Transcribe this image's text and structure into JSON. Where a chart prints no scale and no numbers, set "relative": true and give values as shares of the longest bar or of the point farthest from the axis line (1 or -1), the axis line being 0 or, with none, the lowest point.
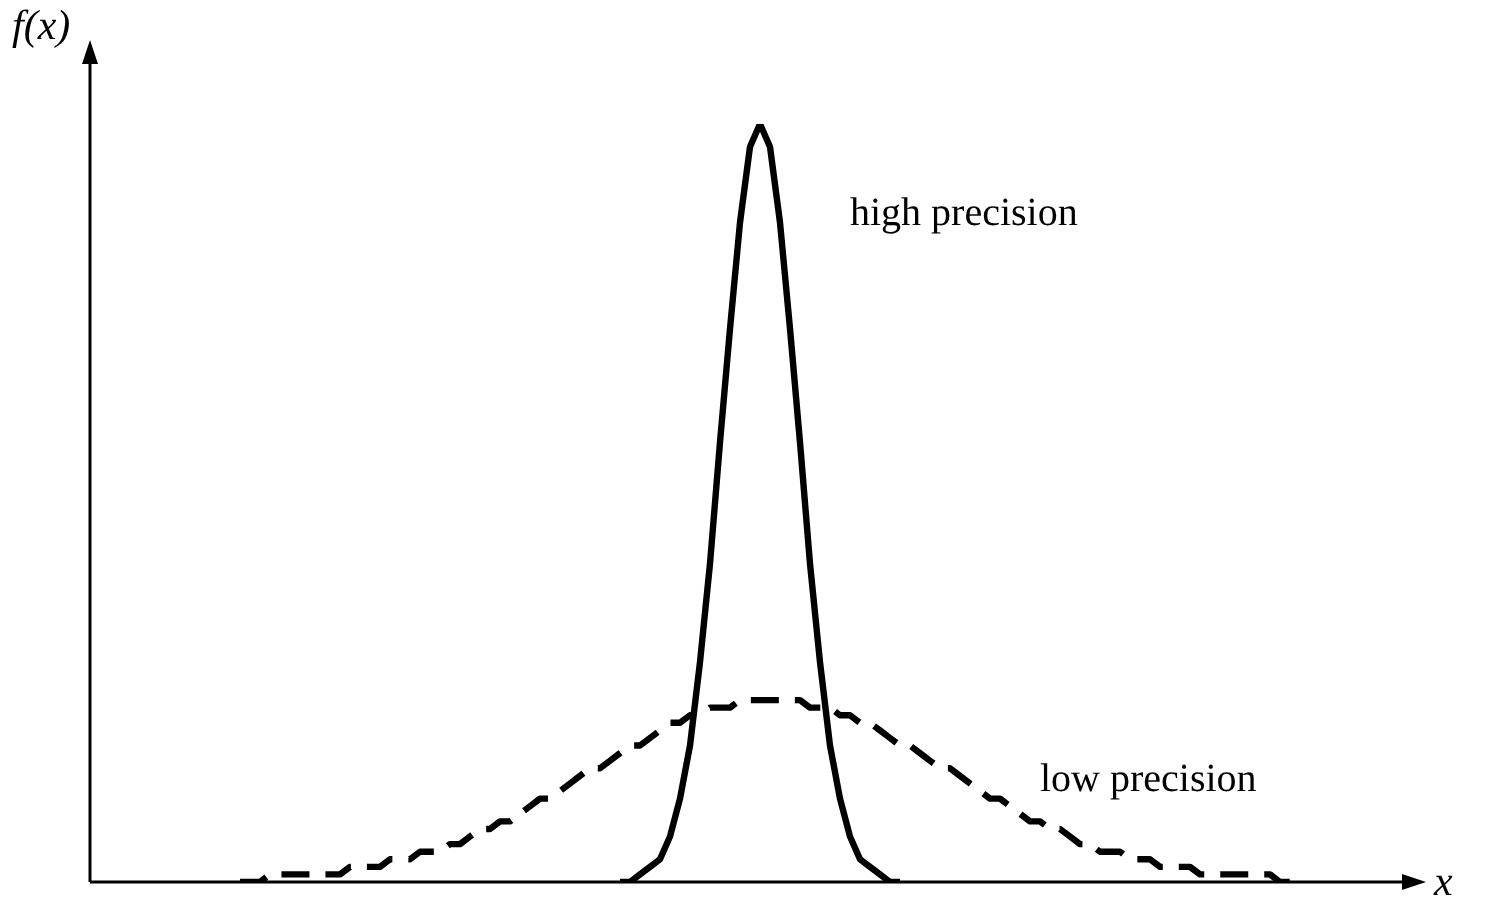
{
  "chart_data": {
    "type": "line",
    "relative": true,
    "xlabel": "x",
    "ylabel": "f(x)",
    "legend": false,
    "marker": "none",
    "categories": [
      null,
      null,
      null,
      null,
      null,
      null,
      null,
      null,
      null,
      null,
      null,
      null,
      null,
      null,
      null,
      null,
      null,
      null,
      null,
      null,
      null,
      null,
      null,
      null,
      null,
      null,
      null,
      null,
      null,
      null,
      null,
      null,
      null,
      null,
      null,
      null,
      null,
      null,
      null,
      null,
      null,
      null,
      null,
      null,
      null,
      null,
      null,
      null,
      null,
      null,
      null,
      null,
      null,
      null,
      null,
      null,
      null,
      null,
      null,
      null,
      null,
      null,
      null,
      null,
      null,
      null,
      null,
      null,
      null,
      null,
      null,
      null,
      null,
      null,
      null,
      null,
      null,
      null,
      null,
      null,
      null,
      null,
      null,
      null,
      null,
      null,
      null,
      null,
      null,
      null,
      null,
      null,
      null,
      null,
      null,
      null,
      null,
      null,
      null,
      null,
      null,
      null,
      null,
      null,
      null,
      null,
      null,
      null,
      null,
      null,
      null,
      null,
      null,
      null,
      null,
      null,
      null,
      null,
      null,
      null,
      null,
      null,
      null,
      null,
      null,
      null,
      null,
      null,
      null,
      null,
      null,
      null,
      null
    ],
    "series": [
      {
        "name": "high precision",
        "color": "#000000",
        "line_style": "solid",
        "values": [
          null,
          null,
          null,
          null,
          null,
          null,
          null,
          null,
          null,
          null,
          null,
          null,
          null,
          null,
          null,
          null,
          null,
          null,
          null,
          null,
          null,
          null,
          null,
          null,
          null,
          null,
          null,
          null,
          null,
          null,
          null,
          null,
          null,
          null,
          null,
          null,
          null,
          null,
          null,
          null,
          null,
          null,
          null,
          null,
          null,
          null,
          null,
          null,
          null,
          null,
          null,
          null,
          null,
          0,
          0,
          0.01,
          0.02,
          0.03,
          0.06,
          0.11,
          0.18,
          0.29,
          0.42,
          0.58,
          0.73,
          0.87,
          0.97,
          1,
          0.97,
          0.87,
          0.73,
          0.58,
          0.42,
          0.29,
          0.18,
          0.11,
          0.06,
          0.03,
          0.02,
          0.01,
          0,
          0,
          null,
          null,
          null,
          null,
          null,
          null,
          null,
          null,
          null,
          null,
          null,
          null,
          null,
          null,
          null,
          null,
          null,
          null,
          null,
          null,
          null,
          null,
          null,
          null,
          null,
          null,
          null,
          null,
          null,
          null,
          null,
          null,
          null,
          null,
          null,
          null,
          null,
          null,
          null,
          null,
          null,
          null,
          null,
          null,
          null,
          null,
          null,
          null,
          null,
          null,
          null
        ]
      },
      {
        "name": "low precision",
        "color": "#000000",
        "line_style": "dashed",
        "values": [
          null,
          null,
          null,
          null,
          null,
          null,
          null,
          null,
          null,
          null,
          null,
          null,
          null,
          null,
          null,
          0,
          0,
          0,
          0.01,
          0.01,
          0.01,
          0.01,
          0.01,
          0.01,
          0.01,
          0.01,
          0.02,
          0.02,
          0.02,
          0.02,
          0.03,
          0.03,
          0.03,
          0.04,
          0.04,
          0.04,
          0.05,
          0.05,
          0.06,
          0.07,
          0.07,
          0.08,
          0.08,
          0.09,
          0.1,
          0.11,
          0.11,
          0.12,
          0.13,
          0.14,
          0.15,
          0.15,
          0.16,
          0.17,
          0.18,
          0.18,
          0.19,
          0.2,
          0.21,
          0.21,
          0.22,
          0.22,
          0.23,
          0.23,
          0.23,
          0.24,
          0.24,
          0.24,
          0.24,
          0.24,
          0.24,
          0.24,
          0.23,
          0.23,
          0.23,
          0.22,
          0.22,
          0.21,
          0.21,
          0.2,
          0.19,
          0.18,
          0.18,
          0.17,
          0.16,
          0.15,
          0.15,
          0.14,
          0.13,
          0.12,
          0.11,
          0.11,
          0.1,
          0.09,
          0.08,
          0.08,
          0.07,
          0.07,
          0.06,
          0.05,
          0.05,
          0.04,
          0.04,
          0.04,
          0.03,
          0.03,
          0.03,
          0.02,
          0.02,
          0.02,
          0.02,
          0.01,
          0.01,
          0.01,
          0.01,
          0.01,
          0.01,
          0.01,
          0.01,
          0,
          0,
          0,
          null,
          null,
          null,
          null,
          null,
          null,
          null,
          null,
          null,
          null,
          null
        ]
      }
    ]
  }
}
